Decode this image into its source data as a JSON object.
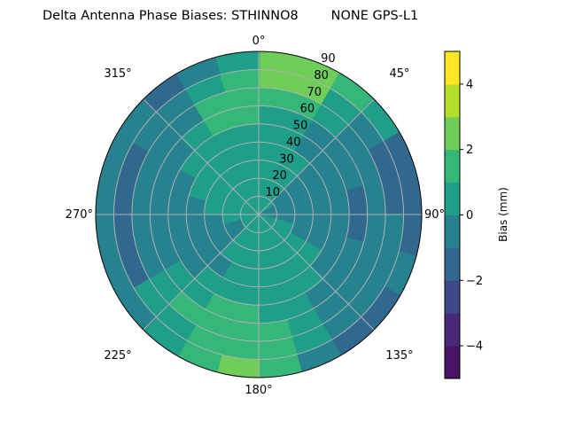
{
  "chart_data": {
    "type": "heatmap",
    "subtype": "polar filled contour",
    "title": "Delta Antenna Phase Biases: STHINNO8        NONE GPS-L1",
    "angular_tick_labels": [
      "0°",
      "45°",
      "90°",
      "135°",
      "180°",
      "225°",
      "270°",
      "315°"
    ],
    "radial_tick_labels": [
      "10",
      "20",
      "30",
      "40",
      "50",
      "60",
      "70",
      "80",
      "90"
    ],
    "radial_range": [
      0,
      90
    ],
    "grid": true,
    "colorbar": {
      "label": "Bias (mm)",
      "range": [
        -5,
        5
      ],
      "levels": [
        -5,
        -4,
        -3,
        -2,
        -1,
        0,
        1,
        2,
        3,
        4,
        5
      ],
      "colors": [
        "#471365",
        "#482878",
        "#3e4989",
        "#31688e",
        "#26828e",
        "#1f9e89",
        "#35b779",
        "#6ece58",
        "#b5de2b",
        "#fde725"
      ],
      "ticks": [
        -4,
        -2,
        0,
        2,
        4
      ],
      "tick_labels": [
        "−4",
        "−2",
        "0",
        "2",
        "4"
      ],
      "position": "right"
    },
    "azimuth_bin_centers": [
      7.5,
      22.5,
      37.5,
      52.5,
      67.5,
      82.5,
      97.5,
      112.5,
      127.5,
      142.5,
      157.5,
      172.5,
      187.5,
      202.5,
      217.5,
      232.5,
      247.5,
      262.5,
      277.5,
      292.5,
      307.5,
      322.5,
      337.5,
      352.5
    ],
    "zenith_bin_centers": [
      5,
      15,
      25,
      35,
      45,
      55,
      65,
      75,
      85
    ],
    "bias_level_lower_bound": [
      [
        0,
        0,
        0,
        0,
        0,
        0,
        1,
        2,
        2
      ],
      [
        0,
        0,
        0,
        0,
        0,
        0,
        1,
        2,
        2
      ],
      [
        0,
        0,
        0,
        0,
        -1,
        -1,
        0,
        0,
        1
      ],
      [
        0,
        -1,
        -1,
        -1,
        -1,
        -1,
        -1,
        -1,
        0
      ],
      [
        -1,
        -1,
        -1,
        -1,
        -1,
        -1,
        -1,
        -2,
        -2
      ],
      [
        -1,
        -1,
        -1,
        -1,
        -1,
        -2,
        -1,
        -2,
        -2
      ],
      [
        -1,
        -1,
        -1,
        -1,
        -1,
        -2,
        -1,
        -1,
        -2
      ],
      [
        0,
        0,
        -1,
        -1,
        -1,
        -1,
        -1,
        -1,
        -1
      ],
      [
        0,
        0,
        0,
        0,
        -1,
        -1,
        -1,
        -1,
        -2
      ],
      [
        0,
        0,
        0,
        0,
        0,
        -1,
        -1,
        -1,
        -2
      ],
      [
        0,
        0,
        0,
        0,
        0,
        0,
        0,
        0,
        -1
      ],
      [
        0,
        0,
        0,
        0,
        0,
        0,
        1,
        1,
        1
      ],
      [
        0,
        0,
        0,
        0,
        0,
        1,
        1,
        1,
        2
      ],
      [
        0,
        0,
        0,
        0,
        0,
        1,
        1,
        1,
        1
      ],
      [
        0,
        0,
        0,
        -1,
        0,
        0,
        1,
        0,
        0
      ],
      [
        0,
        -1,
        -1,
        -1,
        -1,
        0,
        0,
        0,
        -1
      ],
      [
        0,
        -1,
        -1,
        -1,
        -1,
        -1,
        -1,
        -2,
        -1
      ],
      [
        0,
        0,
        -1,
        -1,
        -1,
        -1,
        -1,
        -2,
        -1
      ],
      [
        0,
        0,
        0,
        -1,
        -1,
        -1,
        -1,
        -2,
        -1
      ],
      [
        0,
        0,
        0,
        0,
        -1,
        -1,
        -1,
        -2,
        -1
      ],
      [
        0,
        0,
        0,
        0,
        0,
        -1,
        -1,
        -1,
        -1
      ],
      [
        0,
        0,
        0,
        0,
        0,
        0,
        -1,
        -1,
        -2
      ],
      [
        0,
        0,
        0,
        0,
        0,
        1,
        1,
        0,
        -1
      ],
      [
        0,
        0,
        0,
        0,
        0,
        1,
        1,
        1,
        0
      ]
    ]
  }
}
